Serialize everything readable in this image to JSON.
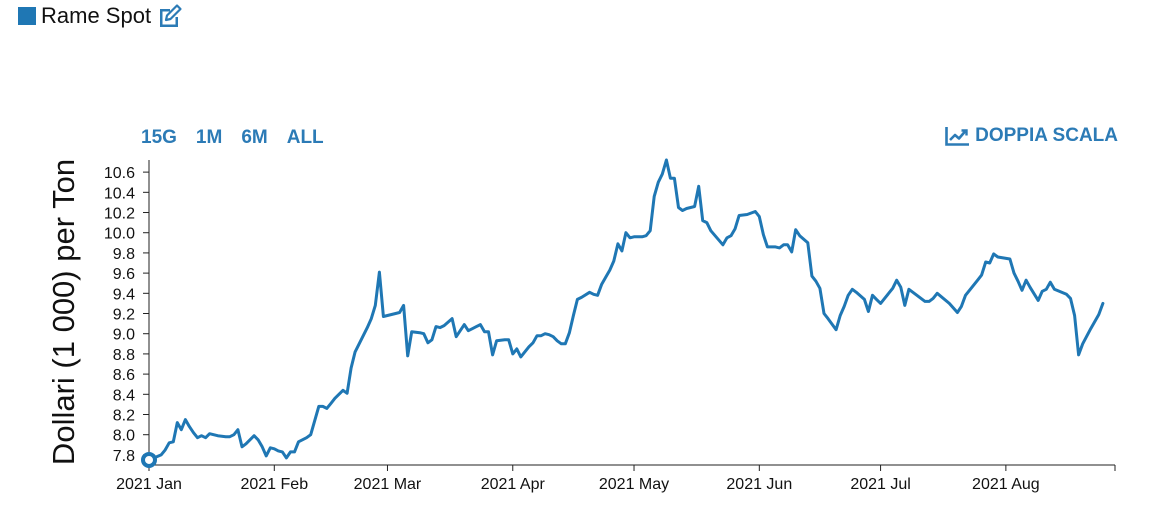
{
  "legend": {
    "label": "Rame Spot",
    "color": "#1f77b4",
    "edit_icon": "edit-icon"
  },
  "range_buttons": [
    "15G",
    "1M",
    "6M",
    "ALL"
  ],
  "dual_scale": {
    "label": "DOPPIA SCALA",
    "icon": "line-chart-icon"
  },
  "accent_color": "#2c7bb6",
  "chart_data": {
    "type": "line",
    "ylabel": "Dollari (1 000) per Ton",
    "ylim": [
      7.7,
      10.72
    ],
    "yticks": [
      7.8,
      8.0,
      8.2,
      8.4,
      8.6,
      8.8,
      9.0,
      9.2,
      9.4,
      9.6,
      9.8,
      10.0,
      10.2,
      10.4,
      10.6
    ],
    "xlim": [
      "2021-01-01",
      "2021-08-28"
    ],
    "xticks": [
      {
        "date": "2021-01-01",
        "label": "2021 Jan"
      },
      {
        "date": "2021-02-01",
        "label": "2021 Feb"
      },
      {
        "date": "2021-03-01",
        "label": "2021 Mar"
      },
      {
        "date": "2021-04-01",
        "label": "2021 Apr"
      },
      {
        "date": "2021-05-01",
        "label": "2021 May"
      },
      {
        "date": "2021-06-01",
        "label": "2021 Jun"
      },
      {
        "date": "2021-07-01",
        "label": "2021 Jul"
      },
      {
        "date": "2021-08-01",
        "label": "2021 Aug"
      }
    ],
    "grid": false,
    "series": [
      {
        "color": "#1f77b4",
        "points": [
          [
            "2021-01-01",
            7.75
          ],
          [
            "2021-01-04",
            7.8
          ],
          [
            "2021-01-05",
            7.85
          ],
          [
            "2021-01-06",
            7.92
          ],
          [
            "2021-01-07",
            7.93
          ],
          [
            "2021-01-08",
            8.12
          ],
          [
            "2021-01-09",
            8.05
          ],
          [
            "2021-01-10",
            8.15
          ],
          [
            "2021-01-11",
            8.08
          ],
          [
            "2021-01-12",
            8.02
          ],
          [
            "2021-01-13",
            7.97
          ],
          [
            "2021-01-14",
            7.99
          ],
          [
            "2021-01-15",
            7.97
          ],
          [
            "2021-01-16",
            8.01
          ],
          [
            "2021-01-18",
            7.99
          ],
          [
            "2021-01-20",
            7.98
          ],
          [
            "2021-01-21",
            7.98
          ],
          [
            "2021-01-22",
            8.0
          ],
          [
            "2021-01-23",
            8.05
          ],
          [
            "2021-01-24",
            7.88
          ],
          [
            "2021-01-25",
            7.91
          ],
          [
            "2021-01-27",
            7.99
          ],
          [
            "2021-01-28",
            7.95
          ],
          [
            "2021-01-29",
            7.88
          ],
          [
            "2021-01-30",
            7.79
          ],
          [
            "2021-01-31",
            7.87
          ],
          [
            "2021-02-01",
            7.86
          ],
          [
            "2021-02-02",
            7.84
          ],
          [
            "2021-02-03",
            7.83
          ],
          [
            "2021-02-04",
            7.77
          ],
          [
            "2021-02-05",
            7.83
          ],
          [
            "2021-02-06",
            7.83
          ],
          [
            "2021-02-07",
            7.93
          ],
          [
            "2021-02-09",
            7.97
          ],
          [
            "2021-02-10",
            8.0
          ],
          [
            "2021-02-12",
            8.28
          ],
          [
            "2021-02-13",
            8.28
          ],
          [
            "2021-02-14",
            8.26
          ],
          [
            "2021-02-15",
            8.31
          ],
          [
            "2021-02-16",
            8.36
          ],
          [
            "2021-02-18",
            8.44
          ],
          [
            "2021-02-19",
            8.41
          ],
          [
            "2021-02-20",
            8.66
          ],
          [
            "2021-02-21",
            8.82
          ],
          [
            "2021-02-24",
            9.06
          ],
          [
            "2021-02-25",
            9.15
          ],
          [
            "2021-02-26",
            9.28
          ],
          [
            "2021-02-27",
            9.61
          ],
          [
            "2021-02-28",
            9.17
          ],
          [
            "2021-03-03",
            9.2
          ],
          [
            "2021-03-04",
            9.21
          ],
          [
            "2021-03-05",
            9.28
          ],
          [
            "2021-03-06",
            8.78
          ],
          [
            "2021-03-07",
            9.02
          ],
          [
            "2021-03-09",
            9.01
          ],
          [
            "2021-03-10",
            9.0
          ],
          [
            "2021-03-11",
            8.91
          ],
          [
            "2021-03-12",
            8.94
          ],
          [
            "2021-03-13",
            9.07
          ],
          [
            "2021-03-14",
            9.06
          ],
          [
            "2021-03-15",
            9.08
          ],
          [
            "2021-03-17",
            9.15
          ],
          [
            "2021-03-18",
            8.97
          ],
          [
            "2021-03-19",
            9.03
          ],
          [
            "2021-03-20",
            9.09
          ],
          [
            "2021-03-21",
            9.03
          ],
          [
            "2021-03-22",
            9.05
          ],
          [
            "2021-03-23",
            9.07
          ],
          [
            "2021-03-24",
            9.09
          ],
          [
            "2021-03-25",
            9.02
          ],
          [
            "2021-03-26",
            9.02
          ],
          [
            "2021-03-27",
            8.79
          ],
          [
            "2021-03-28",
            8.93
          ],
          [
            "2021-03-30",
            8.94
          ],
          [
            "2021-03-31",
            8.94
          ],
          [
            "2021-04-01",
            8.8
          ],
          [
            "2021-04-02",
            8.85
          ],
          [
            "2021-04-03",
            8.77
          ],
          [
            "2021-04-05",
            8.87
          ],
          [
            "2021-04-06",
            8.91
          ],
          [
            "2021-04-07",
            8.98
          ],
          [
            "2021-04-08",
            8.98
          ],
          [
            "2021-04-09",
            9.0
          ],
          [
            "2021-04-10",
            8.99
          ],
          [
            "2021-04-11",
            8.97
          ],
          [
            "2021-04-12",
            8.93
          ],
          [
            "2021-04-13",
            8.9
          ],
          [
            "2021-04-14",
            8.9
          ],
          [
            "2021-04-15",
            9.01
          ],
          [
            "2021-04-16",
            9.18
          ],
          [
            "2021-04-17",
            9.34
          ],
          [
            "2021-04-18",
            9.36
          ],
          [
            "2021-04-20",
            9.41
          ],
          [
            "2021-04-21",
            9.39
          ],
          [
            "2021-04-22",
            9.38
          ],
          [
            "2021-04-23",
            9.49
          ],
          [
            "2021-04-24",
            9.56
          ],
          [
            "2021-04-25",
            9.63
          ],
          [
            "2021-04-26",
            9.72
          ],
          [
            "2021-04-27",
            9.89
          ],
          [
            "2021-04-28",
            9.82
          ],
          [
            "2021-04-29",
            10.0
          ],
          [
            "2021-04-30",
            9.95
          ],
          [
            "2021-05-01",
            9.96
          ],
          [
            "2021-05-03",
            9.96
          ],
          [
            "2021-05-04",
            9.97
          ],
          [
            "2021-05-05",
            10.02
          ],
          [
            "2021-05-06",
            10.36
          ],
          [
            "2021-05-07",
            10.5
          ],
          [
            "2021-05-08",
            10.58
          ],
          [
            "2021-05-09",
            10.72
          ],
          [
            "2021-05-10",
            10.54
          ],
          [
            "2021-05-11",
            10.54
          ],
          [
            "2021-05-12",
            10.25
          ],
          [
            "2021-05-13",
            10.22
          ],
          [
            "2021-05-14",
            10.24
          ],
          [
            "2021-05-16",
            10.26
          ],
          [
            "2021-05-17",
            10.46
          ],
          [
            "2021-05-18",
            10.12
          ],
          [
            "2021-05-19",
            10.1
          ],
          [
            "2021-05-20",
            10.02
          ],
          [
            "2021-05-23",
            9.88
          ],
          [
            "2021-05-24",
            9.95
          ],
          [
            "2021-05-25",
            9.97
          ],
          [
            "2021-05-26",
            10.04
          ],
          [
            "2021-05-27",
            10.17
          ],
          [
            "2021-05-29",
            10.18
          ],
          [
            "2021-05-31",
            10.21
          ],
          [
            "2021-06-01",
            10.16
          ],
          [
            "2021-06-02",
            9.98
          ],
          [
            "2021-06-03",
            9.86
          ],
          [
            "2021-06-05",
            9.86
          ],
          [
            "2021-06-06",
            9.85
          ],
          [
            "2021-06-07",
            9.88
          ],
          [
            "2021-06-08",
            9.88
          ],
          [
            "2021-06-09",
            9.81
          ],
          [
            "2021-06-10",
            10.03
          ],
          [
            "2021-06-11",
            9.97
          ],
          [
            "2021-06-13",
            9.9
          ],
          [
            "2021-06-14",
            9.57
          ],
          [
            "2021-06-15",
            9.52
          ],
          [
            "2021-06-16",
            9.45
          ],
          [
            "2021-06-17",
            9.2
          ],
          [
            "2021-06-18",
            9.15
          ],
          [
            "2021-06-20",
            9.04
          ],
          [
            "2021-06-21",
            9.18
          ],
          [
            "2021-06-22",
            9.27
          ],
          [
            "2021-06-23",
            9.38
          ],
          [
            "2021-06-24",
            9.44
          ],
          [
            "2021-06-25",
            9.41
          ],
          [
            "2021-06-27",
            9.34
          ],
          [
            "2021-06-28",
            9.22
          ],
          [
            "2021-06-29",
            9.38
          ],
          [
            "2021-06-30",
            9.34
          ],
          [
            "2021-07-01",
            9.3
          ],
          [
            "2021-07-02",
            9.35
          ],
          [
            "2021-07-04",
            9.45
          ],
          [
            "2021-07-05",
            9.53
          ],
          [
            "2021-07-06",
            9.46
          ],
          [
            "2021-07-07",
            9.28
          ],
          [
            "2021-07-08",
            9.44
          ],
          [
            "2021-07-10",
            9.38
          ],
          [
            "2021-07-12",
            9.32
          ],
          [
            "2021-07-13",
            9.32
          ],
          [
            "2021-07-14",
            9.35
          ],
          [
            "2021-07-15",
            9.4
          ],
          [
            "2021-07-18",
            9.3
          ],
          [
            "2021-07-20",
            9.21
          ],
          [
            "2021-07-21",
            9.27
          ],
          [
            "2021-07-22",
            9.38
          ],
          [
            "2021-07-25",
            9.53
          ],
          [
            "2021-07-26",
            9.58
          ],
          [
            "2021-07-27",
            9.71
          ],
          [
            "2021-07-28",
            9.7
          ],
          [
            "2021-07-29",
            9.79
          ],
          [
            "2021-07-30",
            9.76
          ],
          [
            "2021-08-02",
            9.74
          ],
          [
            "2021-08-03",
            9.6
          ],
          [
            "2021-08-04",
            9.52
          ],
          [
            "2021-08-05",
            9.43
          ],
          [
            "2021-08-06",
            9.53
          ],
          [
            "2021-08-07",
            9.46
          ],
          [
            "2021-08-09",
            9.33
          ],
          [
            "2021-08-10",
            9.42
          ],
          [
            "2021-08-11",
            9.44
          ],
          [
            "2021-08-12",
            9.51
          ],
          [
            "2021-08-13",
            9.44
          ],
          [
            "2021-08-16",
            9.39
          ],
          [
            "2021-08-17",
            9.35
          ],
          [
            "2021-08-18",
            9.18
          ],
          [
            "2021-08-19",
            8.79
          ],
          [
            "2021-08-20",
            8.9
          ],
          [
            "2021-08-22",
            9.05
          ],
          [
            "2021-08-24",
            9.19
          ],
          [
            "2021-08-25",
            9.3
          ]
        ]
      }
    ]
  }
}
